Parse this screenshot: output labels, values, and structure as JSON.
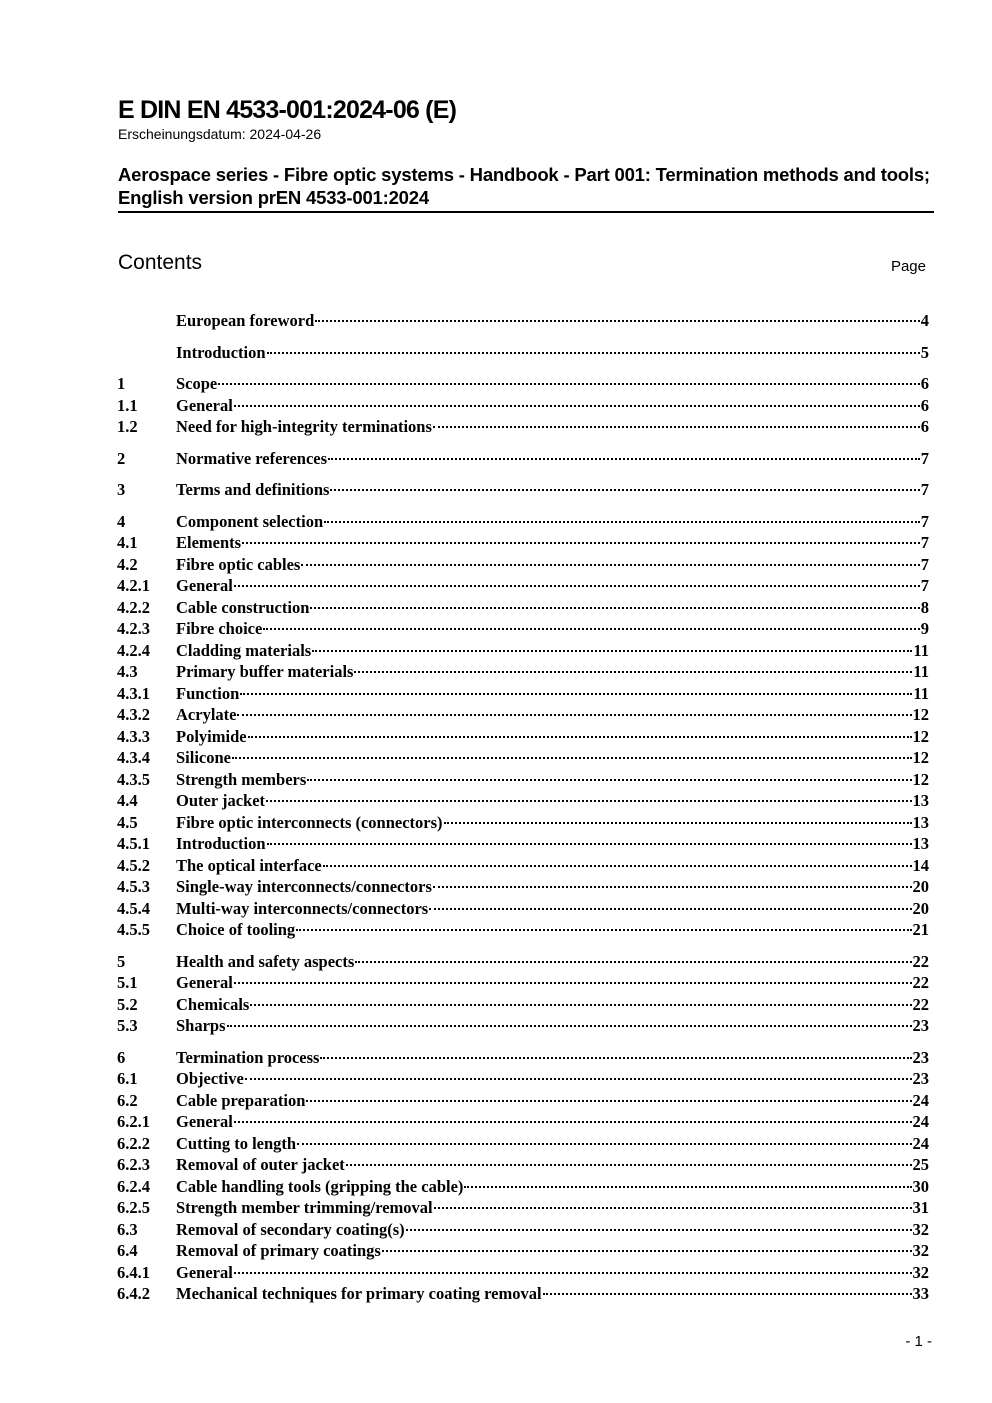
{
  "header": {
    "doc_id": "E DIN EN 4533-001:2024-06 (E)",
    "publication_date": "Erscheinungsdatum: 2024-04-26",
    "title": "Aerospace series - Fibre optic systems - Handbook - Part 001: Termination methods and tools; English version prEN 4533-001:2024"
  },
  "contents": {
    "heading": "Contents",
    "page_label": "Page",
    "groups": [
      [
        {
          "num": "",
          "title": "European foreword",
          "page": "4"
        }
      ],
      [
        {
          "num": "",
          "title": "Introduction",
          "page": "5"
        }
      ],
      [
        {
          "num": "1",
          "title": "Scope",
          "page": "6"
        },
        {
          "num": "1.1",
          "title": "General",
          "page": "6"
        },
        {
          "num": "1.2",
          "title": "Need for high-integrity terminations",
          "page": "6"
        }
      ],
      [
        {
          "num": "2",
          "title": "Normative references",
          "page": "7"
        }
      ],
      [
        {
          "num": "3",
          "title": "Terms and definitions",
          "page": "7"
        }
      ],
      [
        {
          "num": "4",
          "title": "Component selection",
          "page": "7"
        },
        {
          "num": "4.1",
          "title": "Elements",
          "page": "7"
        },
        {
          "num": "4.2",
          "title": "Fibre optic cables",
          "page": "7"
        },
        {
          "num": "4.2.1",
          "title": "General",
          "page": "7"
        },
        {
          "num": "4.2.2",
          "title": "Cable construction",
          "page": "8"
        },
        {
          "num": "4.2.3",
          "title": "Fibre choice",
          "page": "9"
        },
        {
          "num": "4.2.4",
          "title": "Cladding materials",
          "page": "11"
        },
        {
          "num": "4.3",
          "title": "Primary buffer materials",
          "page": "11"
        },
        {
          "num": "4.3.1",
          "title": "Function",
          "page": "11"
        },
        {
          "num": "4.3.2",
          "title": "Acrylate",
          "page": "12"
        },
        {
          "num": "4.3.3",
          "title": "Polyimide",
          "page": "12"
        },
        {
          "num": "4.3.4",
          "title": "Silicone",
          "page": "12"
        },
        {
          "num": "4.3.5",
          "title": "Strength members",
          "page": "12"
        },
        {
          "num": "4.4",
          "title": "Outer jacket",
          "page": "13"
        },
        {
          "num": "4.5",
          "title": "Fibre optic interconnects (connectors)",
          "page": "13"
        },
        {
          "num": "4.5.1",
          "title": "Introduction",
          "page": "13"
        },
        {
          "num": "4.5.2",
          "title": "The optical interface",
          "page": "14"
        },
        {
          "num": "4.5.3",
          "title": "Single-way interconnects/connectors",
          "page": "20"
        },
        {
          "num": "4.5.4",
          "title": "Multi-way interconnects/connectors",
          "page": "20"
        },
        {
          "num": "4.5.5",
          "title": "Choice of tooling",
          "page": "21"
        }
      ],
      [
        {
          "num": "5",
          "title": "Health and safety aspects",
          "page": "22"
        },
        {
          "num": "5.1",
          "title": "General",
          "page": "22"
        },
        {
          "num": "5.2",
          "title": "Chemicals",
          "page": "22"
        },
        {
          "num": "5.3",
          "title": "Sharps",
          "page": "23"
        }
      ],
      [
        {
          "num": "6",
          "title": "Termination process",
          "page": "23"
        },
        {
          "num": "6.1",
          "title": "Objective",
          "page": "23"
        },
        {
          "num": "6.2",
          "title": "Cable preparation",
          "page": "24"
        },
        {
          "num": "6.2.1",
          "title": "General",
          "page": "24"
        },
        {
          "num": "6.2.2",
          "title": "Cutting to length",
          "page": "24"
        },
        {
          "num": "6.2.3",
          "title": "Removal of outer jacket",
          "page": "25"
        },
        {
          "num": "6.2.4",
          "title": "Cable handling tools (gripping the cable)",
          "page": "30"
        },
        {
          "num": "6.2.5",
          "title": "Strength member trimming/removal",
          "page": "31"
        },
        {
          "num": "6.3",
          "title": "Removal of secondary coating(s)",
          "page": "32"
        },
        {
          "num": "6.4",
          "title": "Removal of primary coatings",
          "page": "32"
        },
        {
          "num": "6.4.1",
          "title": "General",
          "page": "32"
        },
        {
          "num": "6.4.2",
          "title": "Mechanical techniques for primary coating removal",
          "page": "33"
        }
      ]
    ]
  },
  "footer": {
    "page_number": "- 1 -"
  }
}
